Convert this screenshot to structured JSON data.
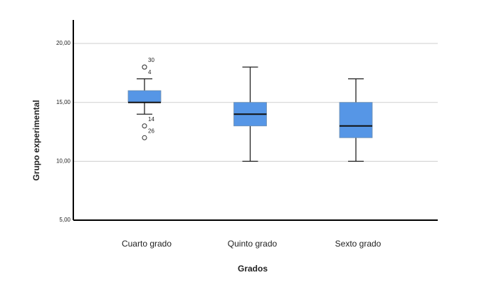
{
  "chart_data": {
    "type": "box",
    "x_label": "Grados",
    "y_label": "Grupo experimental",
    "categories": [
      "Cuarto grado",
      "Quinto grado",
      "Sexto grado"
    ],
    "color": "#5696e6",
    "boxes": [
      {
        "min": 14,
        "q1": 15,
        "median": 15,
        "q3": 16,
        "max": 17,
        "outliers": [
          {
            "value": 18,
            "id": "30"
          },
          {
            "value": 18,
            "id": "4"
          },
          {
            "value": 13,
            "id": "14"
          },
          {
            "value": 12,
            "id": "26"
          }
        ]
      },
      {
        "min": 10,
        "q1": 13,
        "median": 14,
        "q3": 15,
        "max": 18,
        "outliers": []
      },
      {
        "min": 10,
        "q1": 12,
        "median": 13,
        "q3": 15,
        "max": 17,
        "outliers": []
      }
    ],
    "ylim": [
      5,
      22
    ],
    "yticks": [
      {
        "value": 5,
        "label": "5,00"
      },
      {
        "value": 10,
        "label": "10,00"
      },
      {
        "value": 15,
        "label": "15,00"
      },
      {
        "value": 20,
        "label": "20,00"
      }
    ],
    "grid": true
  }
}
